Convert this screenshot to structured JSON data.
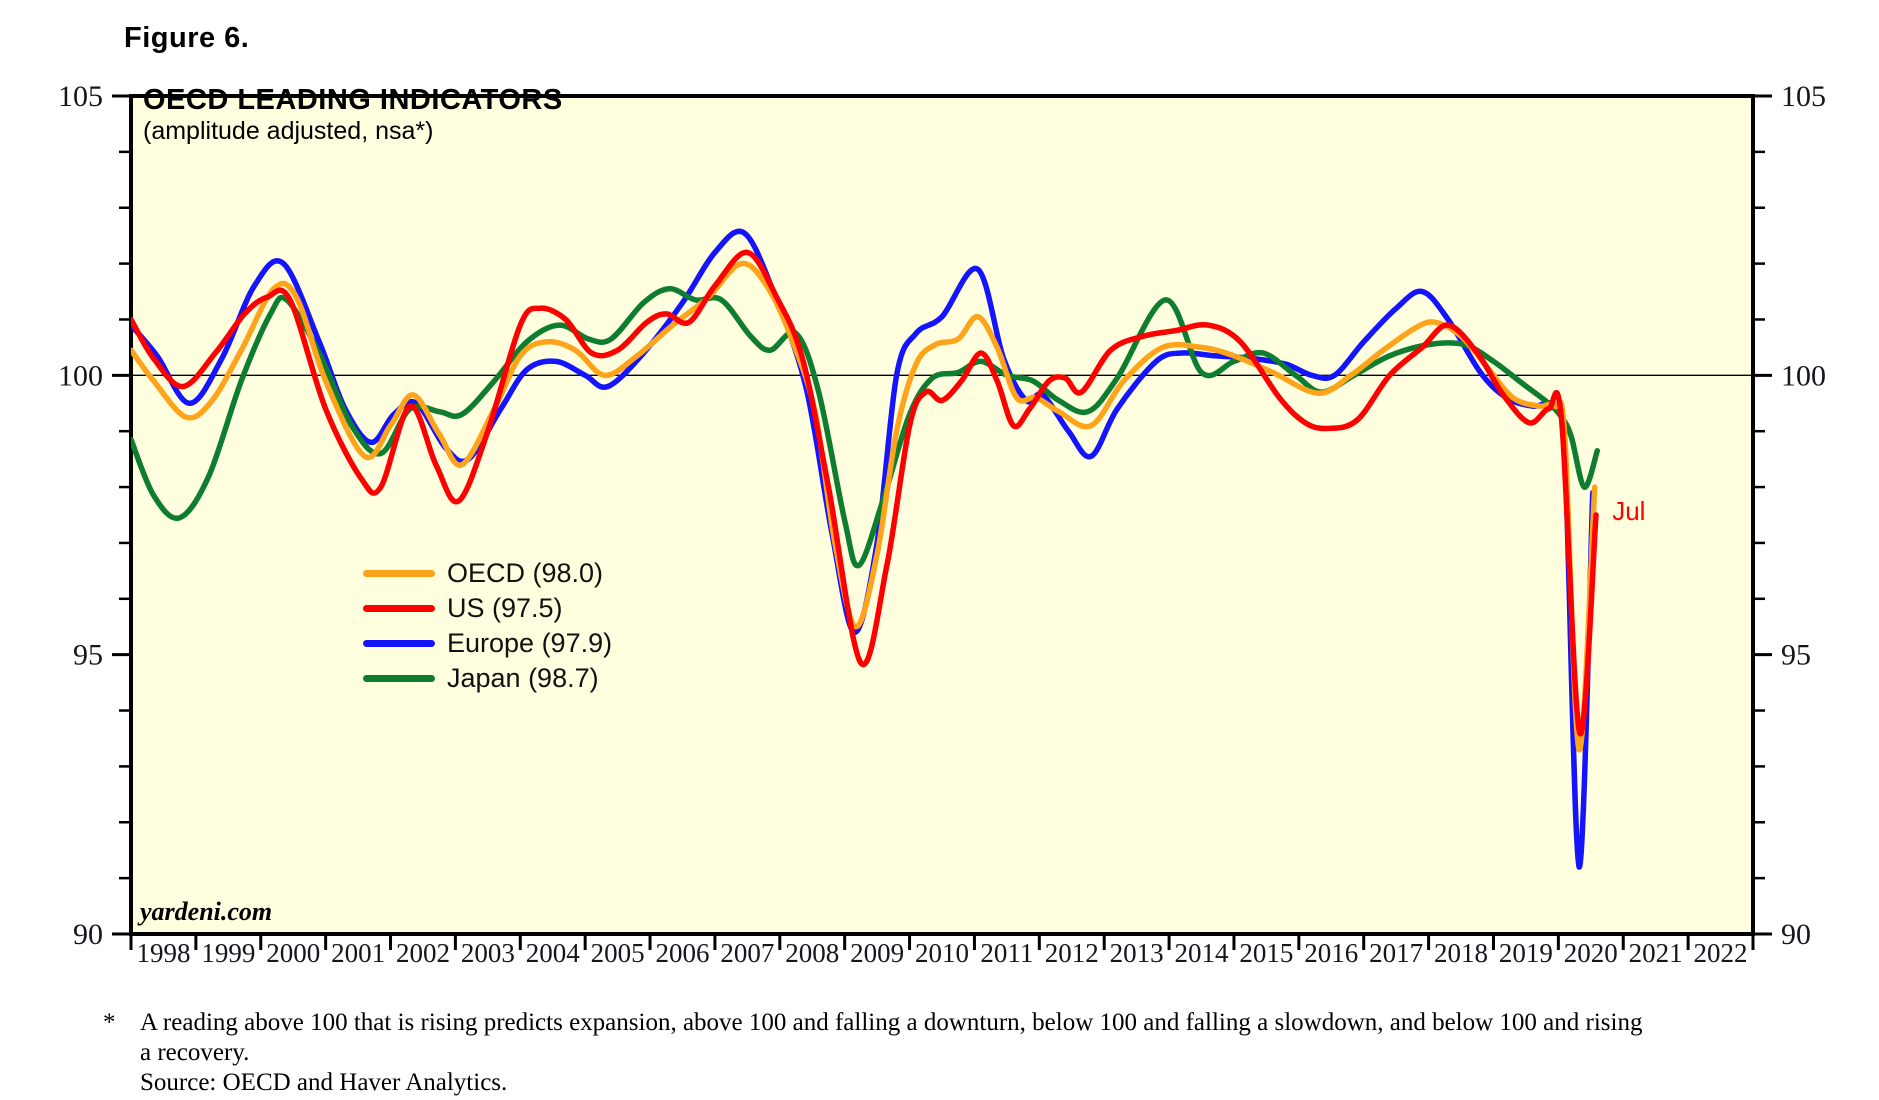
{
  "figure_label": "Figure 6.",
  "watermark": "yardeni.com",
  "footnote": {
    "marker": "*",
    "line1": "A reading above 100 that is rising predicts expansion, above 100 and falling a downturn, below 100 and falling a slowdown, and below 100 and rising",
    "line2": "a recovery.",
    "line3": "Source: OECD and Haver Analytics."
  },
  "chart_data": {
    "type": "line",
    "title": "OECD LEADING INDICATORS",
    "subtitle": "(amplitude adjusted, nsa*)",
    "background": "#FFFFE0",
    "axis_color": "#000000",
    "tick_label_color": "#15151d",
    "ylim": [
      90,
      105
    ],
    "x_range": [
      1998,
      2023
    ],
    "y_major_ticks": [
      90,
      95,
      100,
      105
    ],
    "y_minor_step": 1,
    "reference_line": 100,
    "grid": "off",
    "legend_position": "inside-center-left",
    "x_year_labels": [
      "1998",
      "1999",
      "2000",
      "2001",
      "2002",
      "2003",
      "2004",
      "2005",
      "2006",
      "2007",
      "2008",
      "2009",
      "2010",
      "2011",
      "2012",
      "2013",
      "2014",
      "2015",
      "2016",
      "2017",
      "2018",
      "2019",
      "2020",
      "2021",
      "2022"
    ],
    "annotation": {
      "text": "Jul",
      "x": 2020.83,
      "y": 97.55,
      "color": "#FF0000"
    },
    "draw_order": [
      2,
      3,
      0,
      1
    ],
    "series": [
      {
        "name": "OECD (98.0)",
        "latest_value": 98.0,
        "color": "#FFA41A",
        "points": [
          [
            1998.0,
            100.45
          ],
          [
            1998.35,
            99.9
          ],
          [
            1998.85,
            99.25
          ],
          [
            1999.25,
            99.55
          ],
          [
            1999.7,
            100.45
          ],
          [
            2000.2,
            101.55
          ],
          [
            2000.55,
            101.4
          ],
          [
            2001.0,
            99.9
          ],
          [
            2001.6,
            98.55
          ],
          [
            2002.0,
            99.1
          ],
          [
            2002.35,
            99.65
          ],
          [
            2002.75,
            98.95
          ],
          [
            2003.1,
            98.4
          ],
          [
            2003.6,
            99.4
          ],
          [
            2004.0,
            100.35
          ],
          [
            2004.4,
            100.6
          ],
          [
            2004.85,
            100.45
          ],
          [
            2005.3,
            100.0
          ],
          [
            2005.8,
            100.35
          ],
          [
            2006.35,
            100.9
          ],
          [
            2006.9,
            101.4
          ],
          [
            2007.4,
            102.0
          ],
          [
            2007.8,
            101.6
          ],
          [
            2008.2,
            100.6
          ],
          [
            2008.55,
            99.3
          ],
          [
            2008.85,
            97.0
          ],
          [
            2009.17,
            95.5
          ],
          [
            2009.5,
            96.8
          ],
          [
            2009.8,
            99.0
          ],
          [
            2010.1,
            100.2
          ],
          [
            2010.4,
            100.55
          ],
          [
            2010.75,
            100.65
          ],
          [
            2011.05,
            101.05
          ],
          [
            2011.35,
            100.5
          ],
          [
            2011.65,
            99.6
          ],
          [
            2011.95,
            99.6
          ],
          [
            2012.3,
            99.35
          ],
          [
            2012.8,
            99.1
          ],
          [
            2013.3,
            99.9
          ],
          [
            2013.9,
            100.5
          ],
          [
            2014.5,
            100.5
          ],
          [
            2015.0,
            100.35
          ],
          [
            2015.6,
            100.05
          ],
          [
            2016.3,
            99.68
          ],
          [
            2016.8,
            100.0
          ],
          [
            2017.3,
            100.45
          ],
          [
            2017.8,
            100.85
          ],
          [
            2018.1,
            100.95
          ],
          [
            2018.5,
            100.7
          ],
          [
            2018.9,
            100.15
          ],
          [
            2019.3,
            99.6
          ],
          [
            2019.7,
            99.45
          ],
          [
            2019.95,
            99.45
          ],
          [
            2020.1,
            98.9
          ],
          [
            2020.32,
            93.3
          ],
          [
            2020.56,
            98.0
          ]
        ]
      },
      {
        "name": "US (97.5)",
        "latest_value": 97.5,
        "color": "#FF0000",
        "points": [
          [
            1998.0,
            101.0
          ],
          [
            1998.35,
            100.3
          ],
          [
            1998.8,
            99.8
          ],
          [
            1999.3,
            100.4
          ],
          [
            1999.75,
            101.1
          ],
          [
            2000.1,
            101.4
          ],
          [
            2000.45,
            101.35
          ],
          [
            2001.0,
            99.4
          ],
          [
            2001.55,
            98.15
          ],
          [
            2001.85,
            98.0
          ],
          [
            2002.3,
            99.45
          ],
          [
            2002.7,
            98.4
          ],
          [
            2003.05,
            97.75
          ],
          [
            2003.5,
            99.0
          ],
          [
            2004.0,
            100.9
          ],
          [
            2004.3,
            101.2
          ],
          [
            2004.7,
            101.0
          ],
          [
            2005.1,
            100.4
          ],
          [
            2005.5,
            100.45
          ],
          [
            2005.95,
            100.95
          ],
          [
            2006.25,
            101.1
          ],
          [
            2006.6,
            100.95
          ],
          [
            2007.0,
            101.6
          ],
          [
            2007.5,
            102.2
          ],
          [
            2007.95,
            101.4
          ],
          [
            2008.35,
            100.3
          ],
          [
            2008.75,
            98.0
          ],
          [
            2009.25,
            94.85
          ],
          [
            2009.65,
            96.6
          ],
          [
            2010.0,
            99.1
          ],
          [
            2010.25,
            99.7
          ],
          [
            2010.5,
            99.55
          ],
          [
            2010.8,
            99.9
          ],
          [
            2011.1,
            100.4
          ],
          [
            2011.35,
            99.9
          ],
          [
            2011.6,
            99.1
          ],
          [
            2011.85,
            99.4
          ],
          [
            2012.15,
            99.9
          ],
          [
            2012.4,
            99.95
          ],
          [
            2012.65,
            99.7
          ],
          [
            2013.1,
            100.45
          ],
          [
            2013.6,
            100.7
          ],
          [
            2014.1,
            100.8
          ],
          [
            2014.6,
            100.9
          ],
          [
            2015.1,
            100.6
          ],
          [
            2015.7,
            99.6
          ],
          [
            2016.1,
            99.15
          ],
          [
            2016.45,
            99.05
          ],
          [
            2016.9,
            99.2
          ],
          [
            2017.4,
            100.0
          ],
          [
            2017.9,
            100.5
          ],
          [
            2018.3,
            100.9
          ],
          [
            2018.75,
            100.4
          ],
          [
            2019.15,
            99.65
          ],
          [
            2019.55,
            99.15
          ],
          [
            2019.85,
            99.4
          ],
          [
            2020.05,
            99.2
          ],
          [
            2020.33,
            93.6
          ],
          [
            2020.58,
            97.5
          ]
        ]
      },
      {
        "name": "Europe (97.9)",
        "latest_value": 97.9,
        "color": "#1414FF",
        "points": [
          [
            1998.0,
            100.9
          ],
          [
            1998.4,
            100.35
          ],
          [
            1998.9,
            99.5
          ],
          [
            1999.4,
            100.3
          ],
          [
            1999.9,
            101.6
          ],
          [
            2000.35,
            102.0
          ],
          [
            2000.9,
            100.6
          ],
          [
            2001.3,
            99.4
          ],
          [
            2001.7,
            98.8
          ],
          [
            2002.05,
            99.3
          ],
          [
            2002.4,
            99.5
          ],
          [
            2002.85,
            98.7
          ],
          [
            2003.2,
            98.5
          ],
          [
            2003.7,
            99.4
          ],
          [
            2004.1,
            100.1
          ],
          [
            2004.55,
            100.25
          ],
          [
            2005.0,
            100.0
          ],
          [
            2005.35,
            99.8
          ],
          [
            2005.9,
            100.4
          ],
          [
            2006.5,
            101.3
          ],
          [
            2007.0,
            102.2
          ],
          [
            2007.45,
            102.55
          ],
          [
            2007.9,
            101.5
          ],
          [
            2008.4,
            99.8
          ],
          [
            2008.8,
            97.2
          ],
          [
            2009.15,
            95.4
          ],
          [
            2009.5,
            97.0
          ],
          [
            2009.8,
            100.0
          ],
          [
            2010.1,
            100.75
          ],
          [
            2010.5,
            101.05
          ],
          [
            2011.05,
            101.9
          ],
          [
            2011.45,
            100.3
          ],
          [
            2011.8,
            99.55
          ],
          [
            2012.05,
            99.65
          ],
          [
            2012.45,
            99.0
          ],
          [
            2012.8,
            98.55
          ],
          [
            2013.2,
            99.4
          ],
          [
            2013.8,
            100.25
          ],
          [
            2014.2,
            100.4
          ],
          [
            2014.7,
            100.35
          ],
          [
            2015.3,
            100.3
          ],
          [
            2015.8,
            100.2
          ],
          [
            2016.2,
            100.0
          ],
          [
            2016.55,
            100.0
          ],
          [
            2017.0,
            100.6
          ],
          [
            2017.5,
            101.2
          ],
          [
            2017.9,
            101.5
          ],
          [
            2018.3,
            101.0
          ],
          [
            2018.8,
            100.05
          ],
          [
            2019.2,
            99.6
          ],
          [
            2019.6,
            99.45
          ],
          [
            2019.95,
            99.45
          ],
          [
            2020.1,
            98.6
          ],
          [
            2020.32,
            91.2
          ],
          [
            2020.53,
            97.9
          ]
        ]
      },
      {
        "name": "Japan (98.7)",
        "latest_value": 98.7,
        "color": "#0E7D2F",
        "points": [
          [
            1998.0,
            98.85
          ],
          [
            1998.35,
            97.85
          ],
          [
            1998.75,
            97.45
          ],
          [
            1999.2,
            98.2
          ],
          [
            1999.7,
            99.9
          ],
          [
            2000.15,
            101.1
          ],
          [
            2000.4,
            101.35
          ],
          [
            2000.9,
            100.4
          ],
          [
            2001.4,
            99.1
          ],
          [
            2001.85,
            98.6
          ],
          [
            2002.3,
            99.4
          ],
          [
            2002.75,
            99.35
          ],
          [
            2003.1,
            99.3
          ],
          [
            2003.6,
            99.9
          ],
          [
            2004.1,
            100.6
          ],
          [
            2004.6,
            100.9
          ],
          [
            2005.05,
            100.65
          ],
          [
            2005.4,
            100.65
          ],
          [
            2005.9,
            101.3
          ],
          [
            2006.3,
            101.55
          ],
          [
            2006.7,
            101.35
          ],
          [
            2007.1,
            101.35
          ],
          [
            2007.55,
            100.7
          ],
          [
            2007.85,
            100.45
          ],
          [
            2008.25,
            100.75
          ],
          [
            2008.6,
            99.7
          ],
          [
            2009.0,
            97.4
          ],
          [
            2009.22,
            96.6
          ],
          [
            2009.6,
            97.8
          ],
          [
            2010.0,
            99.3
          ],
          [
            2010.35,
            99.95
          ],
          [
            2010.75,
            100.05
          ],
          [
            2011.1,
            100.25
          ],
          [
            2011.5,
            100.0
          ],
          [
            2011.9,
            99.9
          ],
          [
            2012.3,
            99.55
          ],
          [
            2012.75,
            99.35
          ],
          [
            2013.2,
            99.95
          ],
          [
            2013.95,
            101.35
          ],
          [
            2014.5,
            100.05
          ],
          [
            2015.0,
            100.25
          ],
          [
            2015.45,
            100.4
          ],
          [
            2015.95,
            100.0
          ],
          [
            2016.35,
            99.7
          ],
          [
            2016.85,
            100.0
          ],
          [
            2017.4,
            100.35
          ],
          [
            2018.0,
            100.55
          ],
          [
            2018.55,
            100.55
          ],
          [
            2019.0,
            100.25
          ],
          [
            2019.45,
            99.85
          ],
          [
            2019.85,
            99.5
          ],
          [
            2020.05,
            99.25
          ],
          [
            2020.2,
            98.9
          ],
          [
            2020.4,
            98.0
          ],
          [
            2020.6,
            98.65
          ]
        ]
      }
    ]
  }
}
